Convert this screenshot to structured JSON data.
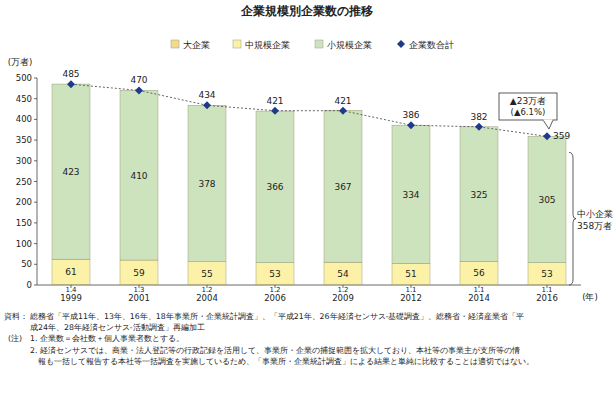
{
  "chart_data": {
    "type": "bar",
    "title": "企業規模別企業数の推移",
    "y_label": "(万者)",
    "x_label": "(年)",
    "categories": [
      "1999",
      "2001",
      "2004",
      "2006",
      "2009",
      "2012",
      "2014",
      "2016"
    ],
    "stacked": true,
    "data_labels": true,
    "grid": false,
    "legend": "top",
    "ylim": [
      0,
      500
    ],
    "yticks": [
      0,
      50,
      100,
      150,
      200,
      250,
      300,
      350,
      400,
      450,
      500
    ],
    "series": [
      {
        "name": "大企業",
        "type": "bar",
        "color": "#f2dc8c",
        "values": [
          1.4,
          1.3,
          1.2,
          1.2,
          1.2,
          1.1,
          1.1,
          1.1
        ]
      },
      {
        "name": "中規模企業",
        "type": "bar",
        "color": "#fbf2a8",
        "values": [
          61,
          59,
          55,
          53,
          54,
          51,
          56,
          53
        ]
      },
      {
        "name": "小規模企業",
        "type": "bar",
        "color": "#cde3bd",
        "values": [
          423,
          410,
          378,
          366,
          367,
          334,
          325,
          305
        ]
      },
      {
        "name": "企業数合計",
        "type": "line",
        "color": "#1f3a8a",
        "marker": "diamond",
        "line_style": "dotted",
        "values": [
          485,
          470,
          434,
          421,
          421,
          386,
          382,
          359
        ]
      }
    ],
    "annotations": [
      {
        "text": "▲23万者"
      },
      {
        "text": "(▲6.1%)"
      },
      {
        "text": "中小企業"
      },
      {
        "text": "358万者"
      }
    ],
    "source_label": "資料：",
    "source": [
      "総務省「平成11年、13年、16年、18年事業所・企業統計調査」、「平成21年、26年経済センサス‐基礎調査」、総務省・経済産業省「平",
      "成24年、28年経済センサス‐活動調査」再編加工"
    ],
    "notes_label": "(注)",
    "notes": [
      [
        "1. 企業数＝会社数＋個人事業者数とする。"
      ],
      [
        "2. 経済センサスでは、商業・法人登記等の行政記録を活用して、事業所・企業の捕捉範囲を拡大しており、本社等の事業主が支所等の情",
        "報も一括して報告する本社等一括調査を実施しているため、「事業所・企業統計調査」による結果と単純に比較することは適切ではない。"
      ]
    ]
  }
}
